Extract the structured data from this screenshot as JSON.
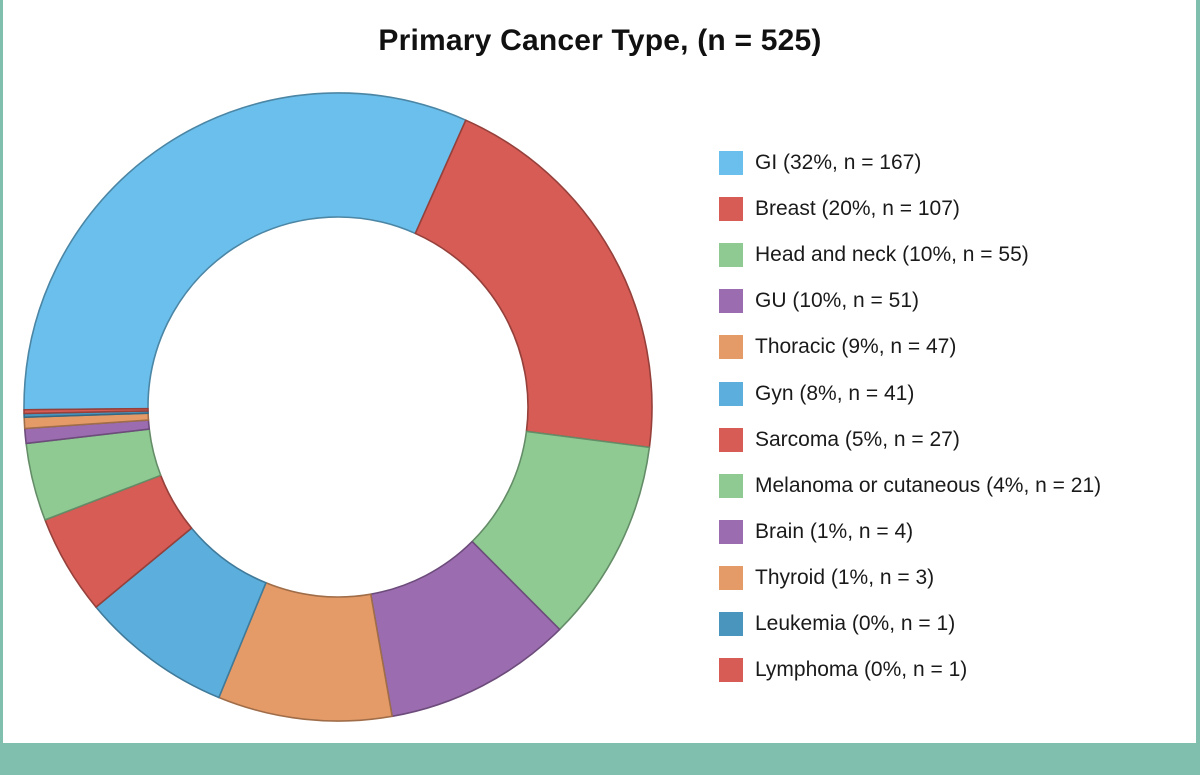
{
  "chart_data": {
    "type": "pie",
    "subtype": "donut",
    "title": "Primary Cancer Type, (n = 525)",
    "legend_position": "right",
    "start": "bottom-left, clockwise",
    "slices": [
      {
        "label": "GI (32%, n = 167)",
        "category": "GI",
        "percent": 32,
        "value": 167,
        "color": "#6bbfec"
      },
      {
        "label": "Breast (20%, n = 107)",
        "category": "Breast",
        "percent": 20,
        "value": 107,
        "color": "#d65c55"
      },
      {
        "label": "Head and neck (10%, n = 55)",
        "category": "Head and neck",
        "percent": 10,
        "value": 55,
        "color": "#8fca93"
      },
      {
        "label": "GU (10%, n = 51)",
        "category": "GU",
        "percent": 10,
        "value": 51,
        "color": "#9b6db0"
      },
      {
        "label": "Thoracic (9%, n = 47)",
        "category": "Thoracic",
        "percent": 9,
        "value": 47,
        "color": "#e59b68"
      },
      {
        "label": "Gyn (8%, n = 41)",
        "category": "Gyn",
        "percent": 8,
        "value": 41,
        "color": "#5cafdc"
      },
      {
        "label": "Sarcoma (5%, n = 27)",
        "category": "Sarcoma",
        "percent": 5,
        "value": 27,
        "color": "#d65c55"
      },
      {
        "label": "Melanoma or cutaneous (4%, n = 21)",
        "category": "Melanoma or cutaneous",
        "percent": 4,
        "value": 21,
        "color": "#8fca93"
      },
      {
        "label": "Brain (1%, n = 4)",
        "category": "Brain",
        "percent": 1,
        "value": 4,
        "color": "#9b6db0"
      },
      {
        "label": "Thyroid (1%, n = 3)",
        "category": "Thyroid",
        "percent": 1,
        "value": 3,
        "color": "#e59b68"
      },
      {
        "label": "Leukemia (0%, n = 1)",
        "category": "Leukemia",
        "percent": 0,
        "value": 1,
        "color": "#4a95bd"
      },
      {
        "label": "Lymphoma (0%, n = 1)",
        "category": "Lymphoma",
        "percent": 0,
        "value": 1,
        "color": "#d65c55"
      }
    ]
  }
}
